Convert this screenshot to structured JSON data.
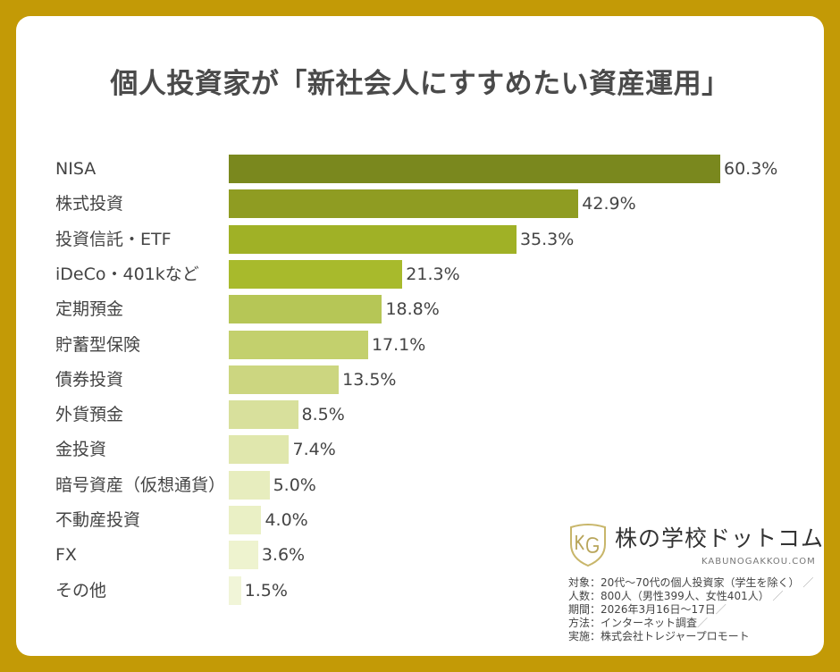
{
  "chart_data": {
    "type": "bar",
    "orientation": "horizontal",
    "title": "個人投資家が「新社会人にすすめたい資産運用」",
    "categories": [
      "NISA",
      "株式投資",
      "投資信託・ETF",
      "iDeCo・401kなど",
      "定期預金",
      "貯蓄型保険",
      "債券投資",
      "外貨預金",
      "金投資",
      "暗号資産（仮想通貨）",
      "不動産投資",
      "FX",
      "その他"
    ],
    "values": [
      60.3,
      42.9,
      35.3,
      21.3,
      18.8,
      17.1,
      13.5,
      8.5,
      7.4,
      5.0,
      4.0,
      3.6,
      1.5
    ],
    "value_labels": [
      "60.3%",
      "42.9%",
      "35.3%",
      "21.3%",
      "18.8%",
      "17.1%",
      "13.5%",
      "8.5%",
      "7.4%",
      "5.0%",
      "4.0%",
      "3.6%",
      "1.5%"
    ],
    "unit": "%",
    "colors": [
      "#7a881e",
      "#8f9c22",
      "#a0b126",
      "#a8ba2c",
      "#b6c656",
      "#c3d06d",
      "#ccd680",
      "#d8e09c",
      "#e0e7ad",
      "#e7edbe",
      "#eaf0c5",
      "#eef3cf",
      "#f1f5d8"
    ],
    "grid": false,
    "legend": "none"
  },
  "logo": {
    "name": "株の学校ドットコム",
    "url": "KABUNOGAKKOU.COM",
    "mark": "KG",
    "accent": "#c8b66a"
  },
  "notes": {
    "target": "対象：20代〜70代の個人投資家（学生を除く）",
    "count": "人数：800人（男性399人、女性401人）",
    "period": "期間：2026年3月16日〜17日",
    "method": "方法：インターネット調査",
    "conductor": "実施：株式会社トレジャープロモート",
    "sep": "／"
  },
  "colors": {
    "frame": "#c39a06",
    "panel": "#ffffff",
    "text": "#444444"
  }
}
